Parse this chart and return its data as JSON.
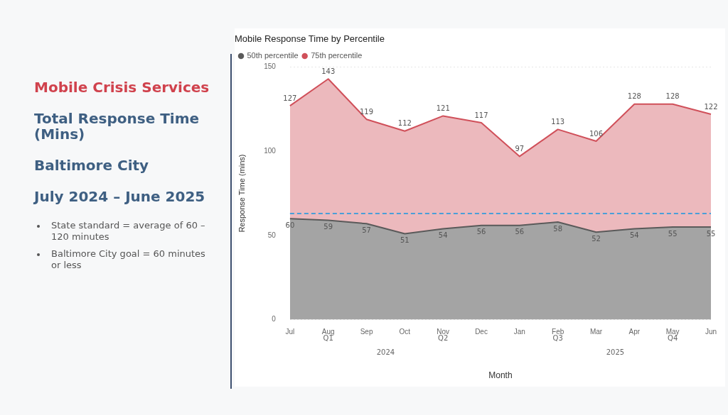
{
  "chart_data": {
    "type": "area",
    "title": "Mobile Response Time by Percentile",
    "xlabel": "Month",
    "ylabel": "Response Time (mins)",
    "categories": [
      "Jul",
      "Aug",
      "Sep",
      "Oct",
      "Nov",
      "Dec",
      "Jan",
      "Feb",
      "Mar",
      "Apr",
      "May",
      "Jun"
    ],
    "series": [
      {
        "name": "50th percentile",
        "color": "#5a5a5a",
        "values": [
          60,
          59,
          57,
          51,
          54,
          56,
          56,
          58,
          52,
          54,
          55,
          55
        ]
      },
      {
        "name": "75th percentile",
        "color": "#d0505a",
        "values": [
          127,
          143,
          119,
          112,
          121,
          117,
          97,
          113,
          106,
          128,
          128,
          122
        ]
      }
    ],
    "ylim": [
      0,
      150
    ],
    "yticks": [
      0,
      50,
      100,
      150
    ],
    "grid": "y",
    "legend": "top left",
    "marker": "none",
    "data_labels": true,
    "ref_lines": [
      {
        "axis": "y",
        "value": 63,
        "color": "#4a9fd8",
        "line_style": "dashed"
      }
    ],
    "annotations": [
      "Mobile Crisis Services",
      "Total Response Time (Mins)",
      "Baltimore City",
      "July 2024 – June 2025",
      "State standard = average of 60 – 120 minutes",
      "Baltimore City goal = 60 minutes or less",
      "Q1",
      "Q2",
      "Q3",
      "Q4",
      "2024",
      "2025"
    ]
  }
}
